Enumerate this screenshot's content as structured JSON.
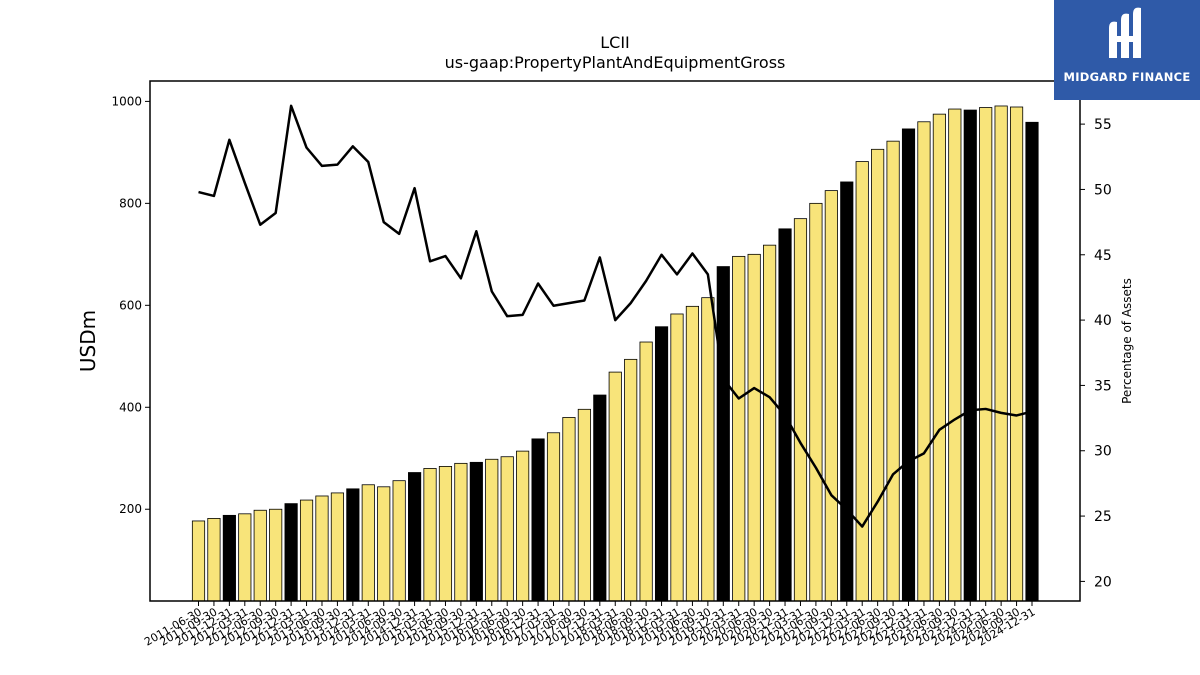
{
  "chart_data": {
    "type": "bar",
    "title": "LCII",
    "subtitle": "us-gaap:PropertyPlantAndEquipmentGross",
    "ylabel": "USDm",
    "ylabel_right": "Percentage of Assets",
    "ylim": [
      20,
      1040
    ],
    "y2lim": [
      18.5,
      58.3
    ],
    "yticks": [
      200,
      400,
      600,
      800,
      1000
    ],
    "y2ticks": [
      20,
      25,
      30,
      35,
      40,
      45,
      50,
      55
    ],
    "grid": false,
    "colors": {
      "bar_normal": "#f8e47a",
      "bar_highlight": "#000000",
      "line": "#000000"
    },
    "categories": [
      "2011-06-30",
      "2011-09-30",
      "2011-12-31",
      "2012-03-31",
      "2012-06-30",
      "2012-09-30",
      "2012-12-31",
      "2013-03-31",
      "2013-06-30",
      "2013-09-30",
      "2013-12-31",
      "2014-03-31",
      "2014-06-30",
      "2014-09-30",
      "2014-12-31",
      "2015-03-31",
      "2015-06-30",
      "2015-09-30",
      "2015-12-31",
      "2016-03-31",
      "2016-06-30",
      "2016-09-30",
      "2016-12-31",
      "2017-03-31",
      "2017-06-30",
      "2017-09-30",
      "2017-12-31",
      "2018-03-31",
      "2018-06-30",
      "2018-09-30",
      "2018-12-31",
      "2019-03-31",
      "2019-06-30",
      "2019-09-30",
      "2019-12-31",
      "2020-03-31",
      "2020-06-30",
      "2020-09-30",
      "2020-12-31",
      "2021-03-31",
      "2021-06-30",
      "2021-09-30",
      "2021-12-31",
      "2022-03-31",
      "2022-06-30",
      "2022-09-30",
      "2022-12-31",
      "2023-03-31",
      "2023-06-30",
      "2023-09-30",
      "2023-12-31",
      "2024-03-31",
      "2024-06-30",
      "2024-09-30",
      "2024-12-31"
    ],
    "xtick_labels": [
      "2011-06-30",
      "2011-09-30",
      "2011-12-31",
      "2012-03-31",
      "2012-06-30",
      "2012-09-30",
      "2012-12-31",
      "2013-03-31",
      "2013-06-30",
      "2013-09-30",
      "2013-12-31",
      "2014-03-31",
      "2014-06-30",
      "2014-09-30",
      "2014-12-31",
      "2015-03-31",
      "2015-06-30",
      "2015-09-30",
      "2015-12-31",
      "2016-03-31",
      "2016-06-30",
      "2016-09-30",
      "2016-12-31",
      "2017-03-31",
      "2017-06-30",
      "2017-09-30",
      "2017-12-31",
      "2018-03-31",
      "2018-06-30",
      "2018-09-30",
      "2018-12-31",
      "2019-03-31",
      "2019-06-30",
      "2019-09-30",
      "2019-12-31",
      "2020-03-31",
      "2020-06-30",
      "2020-09-30",
      "2020-12-31",
      "2021-03-31",
      "2021-06-30",
      "2021-09-30",
      "2021-12-31",
      "2022-03-31",
      "2022-06-30",
      "2022-09-30",
      "2022-12-31",
      "2023-03-31",
      "2023-06-30",
      "2023-09-30",
      "2023-12-31",
      "2024-03-31",
      "2024-06-30",
      "2024-09-30",
      "2024-12-31"
    ],
    "highlighted": [
      false,
      false,
      true,
      false,
      false,
      false,
      true,
      false,
      false,
      false,
      true,
      false,
      false,
      false,
      true,
      false,
      false,
      false,
      true,
      false,
      false,
      false,
      true,
      false,
      false,
      false,
      true,
      false,
      false,
      false,
      true,
      false,
      false,
      false,
      true,
      false,
      false,
      false,
      true,
      false,
      false,
      false,
      true,
      false,
      false,
      false,
      true,
      false,
      false,
      false,
      true,
      false,
      false,
      false,
      true
    ],
    "series": [
      {
        "axis": "left",
        "type": "bar",
        "values": [
          177,
          182,
          188,
          191,
          198,
          200,
          211,
          218,
          226,
          232,
          240,
          248,
          244,
          256,
          272,
          280,
          284,
          290,
          292,
          298,
          303,
          314,
          338,
          350,
          380,
          396,
          424,
          469,
          494,
          528,
          558,
          583,
          598,
          615,
          676,
          696,
          700,
          718,
          750,
          770,
          800,
          825,
          842,
          882,
          906,
          922,
          946,
          960,
          975,
          985,
          983,
          988,
          991,
          989,
          959
        ]
      },
      {
        "axis": "right",
        "type": "line",
        "values": [
          49.8,
          49.5,
          53.8,
          50.5,
          47.3,
          48.2,
          56.4,
          53.2,
          51.8,
          51.9,
          53.3,
          52.1,
          47.5,
          46.6,
          50.1,
          44.5,
          44.9,
          43.2,
          46.8,
          42.2,
          40.3,
          40.4,
          42.8,
          41.1,
          41.3,
          41.5,
          44.8,
          40.0,
          41.3,
          43.0,
          45.0,
          43.5,
          45.1,
          43.5,
          35.5,
          34.0,
          34.8,
          34.1,
          32.7,
          30.6,
          28.7,
          26.6,
          25.5,
          24.2,
          26.1,
          28.2,
          29.2,
          29.8,
          31.6,
          32.4,
          33.1,
          33.2,
          32.9,
          32.7,
          33.0
        ]
      }
    ]
  },
  "logo": {
    "text": "MIDGARD FINANCE"
  }
}
